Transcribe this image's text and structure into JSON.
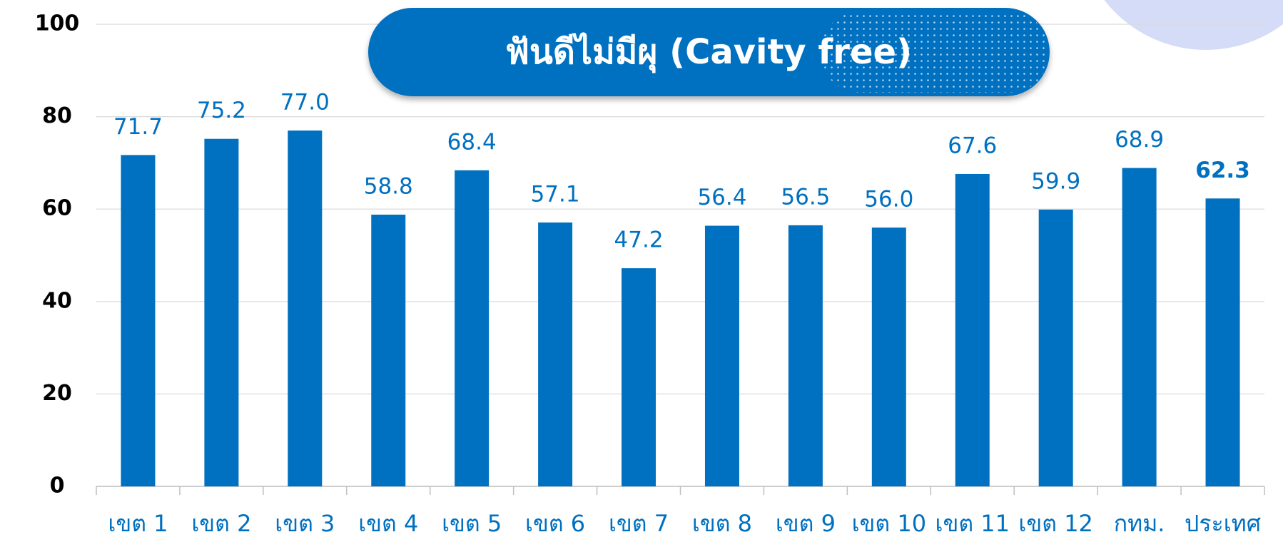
{
  "chart_data": {
    "type": "bar",
    "title": "ฟันดีไม่มีผุ  (Cavity free)",
    "categories": [
      "เขต 1",
      "เขต 2",
      "เขต 3",
      "เขต 4",
      "เขต 5",
      "เขต 6",
      "เขต 7",
      "เขต 8",
      "เขต 9",
      "เขต 10",
      "เขต 11",
      "เขต 12",
      "กทม.",
      "ประเทศ"
    ],
    "values": [
      71.7,
      75.2,
      77,
      58.8,
      68.4,
      57.1,
      47.2,
      56.4,
      56.5,
      56,
      67.6,
      59.9,
      68.9,
      62.3
    ],
    "value_labels": [
      "71.7",
      "75.2",
      "77.0",
      "58.8",
      "68.4",
      "57.1",
      "47.2",
      "56.4",
      "56.5",
      "56.0",
      "67.6",
      "59.9",
      "68.9",
      "62.3"
    ],
    "color": "#0070c0",
    "ylim": [
      0,
      100
    ],
    "yticks": [
      0,
      20,
      40,
      60,
      80,
      100
    ],
    "grid": true
  }
}
